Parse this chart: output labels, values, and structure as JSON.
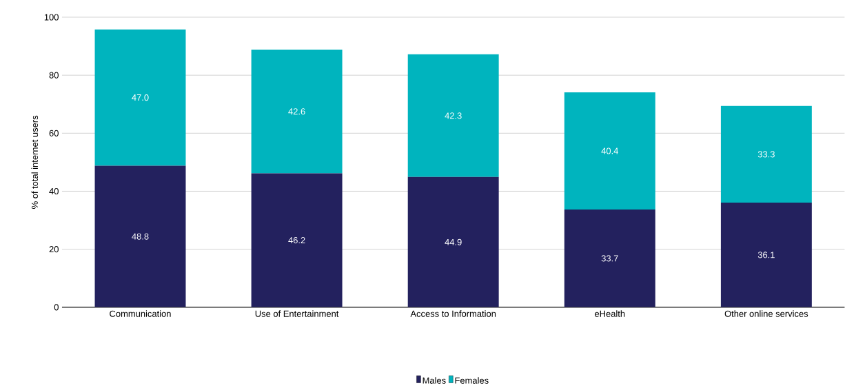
{
  "chart_data": {
    "type": "bar",
    "stacked": true,
    "ylabel": "% of total internet users",
    "categories": [
      "Communication",
      "Use of Entertainment",
      "Access to Information",
      "eHealth",
      "Other online services"
    ],
    "series": [
      {
        "name": "Males",
        "color": "#23215e",
        "values": [
          48.8,
          46.2,
          44.9,
          33.7,
          36.1
        ],
        "value_labels": [
          "48.8",
          "46.2",
          "44.9",
          "33.7",
          "36.1"
        ]
      },
      {
        "name": "Females",
        "color": "#00b4be",
        "values": [
          47.0,
          42.6,
          42.3,
          40.4,
          33.3
        ],
        "value_labels": [
          "47.0",
          "42.6",
          "42.3",
          "40.4",
          "33.3"
        ]
      }
    ],
    "ylim": [
      0,
      100
    ],
    "yticks": [
      0,
      20,
      40,
      60,
      80,
      100
    ],
    "grid": "y",
    "legend": "bottom"
  }
}
